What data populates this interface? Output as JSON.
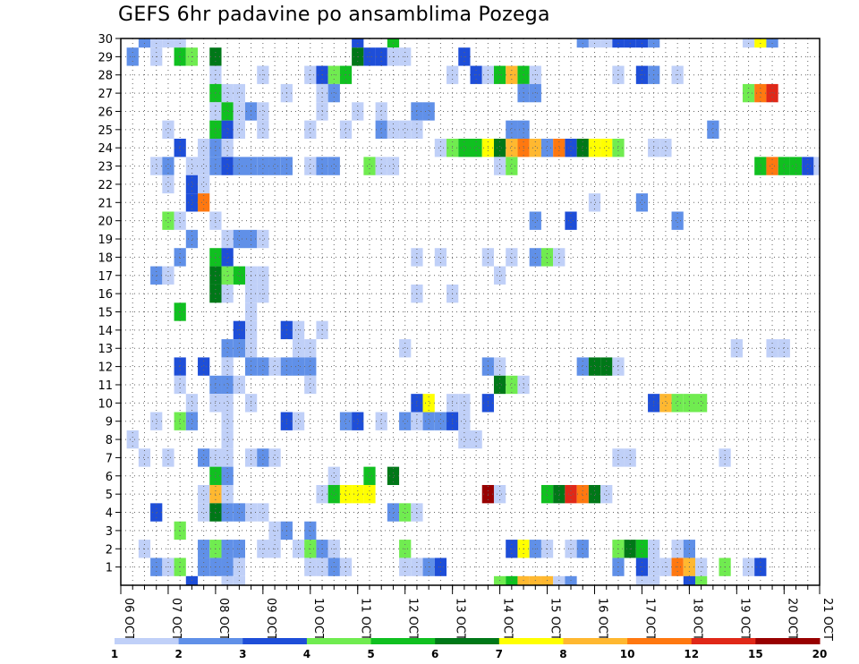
{
  "chart_data": {
    "type": "heatmap",
    "title": "GEFS 6hr padavine po ansamblima Pozega",
    "xlabel": "",
    "ylabel": "",
    "x_range": [
      0,
      59
    ],
    "y_range": [
      0,
      30
    ],
    "x_ticks": [
      {
        "t": 0,
        "label": "06 OCT"
      },
      {
        "t": 4,
        "label": "07 OCT"
      },
      {
        "t": 8,
        "label": "08 OCT"
      },
      {
        "t": 12,
        "label": "09 OCT"
      },
      {
        "t": 16,
        "label": "10 OCT"
      },
      {
        "t": 20,
        "label": "11 OCT"
      },
      {
        "t": 24,
        "label": "12 OCT"
      },
      {
        "t": 28,
        "label": "13 OCT"
      },
      {
        "t": 32,
        "label": "14 OCT"
      },
      {
        "t": 36,
        "label": "15 OCT"
      },
      {
        "t": 40,
        "label": "16 OCT"
      },
      {
        "t": 44,
        "label": "17 OCT"
      },
      {
        "t": 48,
        "label": "18 OCT"
      },
      {
        "t": 52,
        "label": "19 OCT"
      },
      {
        "t": 56,
        "label": "20 OCT"
      },
      {
        "t": 59,
        "label": "21 OCT"
      }
    ],
    "y_ticks": [
      "1",
      "2",
      "3",
      "4",
      "5",
      "6",
      "7",
      "8",
      "9",
      "10",
      "11",
      "12",
      "13",
      "14",
      "15",
      "16",
      "17",
      "18",
      "19",
      "20",
      "21",
      "22",
      "23",
      "24",
      "25",
      "26",
      "27",
      "28",
      "29",
      "30"
    ],
    "colorbar": {
      "colors": [
        "#c0d0f8",
        "#6090e8",
        "#1e4ed8",
        "#70ec50",
        "#10c020",
        "#007818",
        "#ffff00",
        "#ffb830",
        "#ff7810",
        "#e02818",
        "#980000"
      ],
      "labels": [
        "1",
        "2",
        "3",
        "4",
        "5",
        "6",
        "7",
        "8",
        "10",
        "12",
        "15",
        "20"
      ]
    },
    "cells": [
      [
        2,
        30,
        2
      ],
      [
        3,
        30,
        1
      ],
      [
        4,
        30,
        1
      ],
      [
        5,
        30,
        1
      ],
      [
        20,
        30,
        3
      ],
      [
        23,
        30,
        5
      ],
      [
        39,
        30,
        2
      ],
      [
        40,
        30,
        1
      ],
      [
        41,
        30,
        1
      ],
      [
        42,
        30,
        3
      ],
      [
        43,
        30,
        3
      ],
      [
        44,
        30,
        3
      ],
      [
        45,
        30,
        2
      ],
      [
        53,
        30,
        1
      ],
      [
        54,
        30,
        7
      ],
      [
        55,
        30,
        2
      ],
      [
        1,
        29,
        2
      ],
      [
        3,
        29,
        1
      ],
      [
        5,
        29,
        5
      ],
      [
        6,
        29,
        4
      ],
      [
        8,
        29,
        6
      ],
      [
        20,
        29,
        6
      ],
      [
        21,
        29,
        3
      ],
      [
        22,
        29,
        3
      ],
      [
        23,
        29,
        1
      ],
      [
        24,
        29,
        1
      ],
      [
        29,
        29,
        3
      ],
      [
        8,
        28,
        1
      ],
      [
        12,
        28,
        1
      ],
      [
        16,
        28,
        1
      ],
      [
        17,
        28,
        3
      ],
      [
        18,
        28,
        4
      ],
      [
        19,
        28,
        5
      ],
      [
        28,
        28,
        1
      ],
      [
        30,
        28,
        3
      ],
      [
        31,
        28,
        1
      ],
      [
        32,
        28,
        5
      ],
      [
        33,
        28,
        8
      ],
      [
        34,
        28,
        5
      ],
      [
        35,
        28,
        1
      ],
      [
        42,
        28,
        1
      ],
      [
        44,
        28,
        3
      ],
      [
        45,
        28,
        2
      ],
      [
        47,
        28,
        1
      ],
      [
        8,
        27,
        5
      ],
      [
        9,
        27,
        1
      ],
      [
        10,
        27,
        1
      ],
      [
        14,
        27,
        1
      ],
      [
        17,
        27,
        1
      ],
      [
        18,
        27,
        2
      ],
      [
        34,
        27,
        2
      ],
      [
        35,
        27,
        2
      ],
      [
        53,
        27,
        4
      ],
      [
        54,
        27,
        9
      ],
      [
        55,
        27,
        10
      ],
      [
        8,
        26,
        1
      ],
      [
        9,
        26,
        5
      ],
      [
        10,
        26,
        1
      ],
      [
        11,
        26,
        2
      ],
      [
        12,
        26,
        1
      ],
      [
        17,
        26,
        1
      ],
      [
        20,
        26,
        1
      ],
      [
        22,
        26,
        1
      ],
      [
        25,
        26,
        2
      ],
      [
        26,
        26,
        2
      ],
      [
        4,
        25,
        1
      ],
      [
        8,
        25,
        5
      ],
      [
        9,
        25,
        3
      ],
      [
        10,
        25,
        1
      ],
      [
        12,
        25,
        1
      ],
      [
        16,
        25,
        1
      ],
      [
        19,
        25,
        1
      ],
      [
        22,
        25,
        2
      ],
      [
        23,
        25,
        1
      ],
      [
        24,
        25,
        1
      ],
      [
        25,
        25,
        1
      ],
      [
        33,
        25,
        2
      ],
      [
        34,
        25,
        2
      ],
      [
        50,
        25,
        2
      ],
      [
        5,
        24,
        3
      ],
      [
        7,
        24,
        1
      ],
      [
        8,
        24,
        2
      ],
      [
        9,
        24,
        1
      ],
      [
        27,
        24,
        1
      ],
      [
        28,
        24,
        4
      ],
      [
        29,
        24,
        5
      ],
      [
        30,
        24,
        5
      ],
      [
        31,
        24,
        7
      ],
      [
        32,
        24,
        6
      ],
      [
        33,
        24,
        8
      ],
      [
        34,
        24,
        9
      ],
      [
        35,
        24,
        8
      ],
      [
        36,
        24,
        2
      ],
      [
        37,
        24,
        9
      ],
      [
        38,
        24,
        3
      ],
      [
        39,
        24,
        6
      ],
      [
        40,
        24,
        7
      ],
      [
        41,
        24,
        7
      ],
      [
        42,
        24,
        4
      ],
      [
        45,
        24,
        1
      ],
      [
        46,
        24,
        1
      ],
      [
        3,
        23,
        1
      ],
      [
        4,
        23,
        2
      ],
      [
        6,
        23,
        1
      ],
      [
        7,
        23,
        1
      ],
      [
        8,
        23,
        2
      ],
      [
        9,
        23,
        3
      ],
      [
        10,
        23,
        2
      ],
      [
        11,
        23,
        2
      ],
      [
        12,
        23,
        2
      ],
      [
        13,
        23,
        2
      ],
      [
        14,
        23,
        2
      ],
      [
        16,
        23,
        1
      ],
      [
        17,
        23,
        2
      ],
      [
        18,
        23,
        2
      ],
      [
        21,
        23,
        4
      ],
      [
        22,
        23,
        1
      ],
      [
        23,
        23,
        1
      ],
      [
        32,
        23,
        1
      ],
      [
        33,
        23,
        4
      ],
      [
        54,
        23,
        5
      ],
      [
        55,
        23,
        9
      ],
      [
        56,
        23,
        5
      ],
      [
        57,
        23,
        5
      ],
      [
        58,
        23,
        3
      ],
      [
        59,
        23,
        1
      ],
      [
        4,
        22,
        1
      ],
      [
        6,
        22,
        3
      ],
      [
        7,
        22,
        1
      ],
      [
        6,
        21,
        3
      ],
      [
        7,
        21,
        9
      ],
      [
        40,
        21,
        1
      ],
      [
        44,
        21,
        2
      ],
      [
        4,
        20,
        4
      ],
      [
        5,
        20,
        1
      ],
      [
        8,
        20,
        1
      ],
      [
        35,
        20,
        2
      ],
      [
        38,
        20,
        3
      ],
      [
        47,
        20,
        2
      ],
      [
        6,
        19,
        2
      ],
      [
        9,
        19,
        1
      ],
      [
        10,
        19,
        2
      ],
      [
        11,
        19,
        2
      ],
      [
        12,
        19,
        1
      ],
      [
        5,
        18,
        2
      ],
      [
        8,
        18,
        5
      ],
      [
        9,
        18,
        3
      ],
      [
        25,
        18,
        1
      ],
      [
        27,
        18,
        1
      ],
      [
        31,
        18,
        1
      ],
      [
        33,
        18,
        1
      ],
      [
        35,
        18,
        2
      ],
      [
        36,
        18,
        4
      ],
      [
        37,
        18,
        1
      ],
      [
        3,
        17,
        2
      ],
      [
        4,
        17,
        1
      ],
      [
        8,
        17,
        6
      ],
      [
        9,
        17,
        4
      ],
      [
        10,
        17,
        5
      ],
      [
        11,
        17,
        1
      ],
      [
        12,
        17,
        1
      ],
      [
        32,
        17,
        1
      ],
      [
        8,
        16,
        6
      ],
      [
        9,
        16,
        1
      ],
      [
        11,
        16,
        1
      ],
      [
        12,
        16,
        1
      ],
      [
        25,
        16,
        1
      ],
      [
        28,
        16,
        1
      ],
      [
        5,
        15,
        5
      ],
      [
        11,
        15,
        1
      ],
      [
        10,
        14,
        3
      ],
      [
        11,
        14,
        1
      ],
      [
        14,
        14,
        3
      ],
      [
        15,
        14,
        1
      ],
      [
        17,
        14,
        1
      ],
      [
        9,
        13,
        2
      ],
      [
        10,
        13,
        2
      ],
      [
        11,
        13,
        1
      ],
      [
        15,
        13,
        1
      ],
      [
        16,
        13,
        1
      ],
      [
        24,
        13,
        1
      ],
      [
        52,
        13,
        1
      ],
      [
        55,
        13,
        1
      ],
      [
        56,
        13,
        1
      ],
      [
        5,
        12,
        3
      ],
      [
        7,
        12,
        3
      ],
      [
        9,
        12,
        1
      ],
      [
        11,
        12,
        2
      ],
      [
        12,
        12,
        2
      ],
      [
        13,
        12,
        1
      ],
      [
        14,
        12,
        2
      ],
      [
        15,
        12,
        2
      ],
      [
        16,
        12,
        2
      ],
      [
        31,
        12,
        2
      ],
      [
        32,
        12,
        1
      ],
      [
        39,
        12,
        2
      ],
      [
        40,
        12,
        6
      ],
      [
        41,
        12,
        6
      ],
      [
        42,
        12,
        1
      ],
      [
        5,
        11,
        1
      ],
      [
        8,
        11,
        2
      ],
      [
        9,
        11,
        2
      ],
      [
        10,
        11,
        1
      ],
      [
        16,
        11,
        1
      ],
      [
        32,
        11,
        6
      ],
      [
        33,
        11,
        4
      ],
      [
        34,
        11,
        1
      ],
      [
        6,
        10,
        1
      ],
      [
        8,
        10,
        1
      ],
      [
        9,
        10,
        1
      ],
      [
        11,
        10,
        1
      ],
      [
        25,
        10,
        3
      ],
      [
        26,
        10,
        7
      ],
      [
        28,
        10,
        1
      ],
      [
        29,
        10,
        1
      ],
      [
        31,
        10,
        3
      ],
      [
        45,
        10,
        3
      ],
      [
        46,
        10,
        8
      ],
      [
        47,
        10,
        4
      ],
      [
        48,
        10,
        4
      ],
      [
        49,
        10,
        4
      ],
      [
        3,
        9,
        1
      ],
      [
        5,
        9,
        4
      ],
      [
        6,
        9,
        2
      ],
      [
        9,
        9,
        1
      ],
      [
        14,
        9,
        3
      ],
      [
        15,
        9,
        1
      ],
      [
        19,
        9,
        2
      ],
      [
        20,
        9,
        3
      ],
      [
        22,
        9,
        1
      ],
      [
        24,
        9,
        2
      ],
      [
        25,
        9,
        1
      ],
      [
        26,
        9,
        2
      ],
      [
        27,
        9,
        2
      ],
      [
        28,
        9,
        3
      ],
      [
        29,
        9,
        1
      ],
      [
        1,
        8,
        1
      ],
      [
        9,
        8,
        1
      ],
      [
        29,
        8,
        1
      ],
      [
        30,
        8,
        1
      ],
      [
        2,
        7,
        1
      ],
      [
        4,
        7,
        1
      ],
      [
        7,
        7,
        2
      ],
      [
        8,
        7,
        1
      ],
      [
        9,
        7,
        1
      ],
      [
        11,
        7,
        1
      ],
      [
        12,
        7,
        2
      ],
      [
        13,
        7,
        1
      ],
      [
        42,
        7,
        1
      ],
      [
        43,
        7,
        1
      ],
      [
        51,
        7,
        1
      ],
      [
        8,
        6,
        5
      ],
      [
        9,
        6,
        2
      ],
      [
        18,
        6,
        1
      ],
      [
        21,
        6,
        5
      ],
      [
        23,
        6,
        6
      ],
      [
        7,
        5,
        1
      ],
      [
        8,
        5,
        8
      ],
      [
        9,
        5,
        1
      ],
      [
        17,
        5,
        1
      ],
      [
        18,
        5,
        5
      ],
      [
        19,
        5,
        7
      ],
      [
        20,
        5,
        7
      ],
      [
        21,
        5,
        7
      ],
      [
        31,
        5,
        11
      ],
      [
        32,
        5,
        1
      ],
      [
        36,
        5,
        5
      ],
      [
        37,
        5,
        6
      ],
      [
        38,
        5,
        10
      ],
      [
        39,
        5,
        9
      ],
      [
        40,
        5,
        6
      ],
      [
        41,
        5,
        1
      ],
      [
        3,
        4,
        3
      ],
      [
        7,
        4,
        1
      ],
      [
        8,
        4,
        6
      ],
      [
        9,
        4,
        2
      ],
      [
        10,
        4,
        2
      ],
      [
        11,
        4,
        1
      ],
      [
        12,
        4,
        1
      ],
      [
        23,
        4,
        2
      ],
      [
        24,
        4,
        4
      ],
      [
        25,
        4,
        1
      ],
      [
        5,
        3,
        4
      ],
      [
        13,
        3,
        1
      ],
      [
        14,
        3,
        2
      ],
      [
        16,
        3,
        2
      ],
      [
        2,
        2,
        1
      ],
      [
        7,
        2,
        2
      ],
      [
        8,
        2,
        4
      ],
      [
        9,
        2,
        2
      ],
      [
        10,
        2,
        2
      ],
      [
        12,
        2,
        1
      ],
      [
        13,
        2,
        1
      ],
      [
        15,
        2,
        1
      ],
      [
        16,
        2,
        4
      ],
      [
        17,
        2,
        2
      ],
      [
        18,
        2,
        1
      ],
      [
        24,
        2,
        4
      ],
      [
        33,
        2,
        3
      ],
      [
        34,
        2,
        7
      ],
      [
        35,
        2,
        2
      ],
      [
        36,
        2,
        1
      ],
      [
        38,
        2,
        1
      ],
      [
        39,
        2,
        2
      ],
      [
        42,
        2,
        4
      ],
      [
        43,
        2,
        6
      ],
      [
        44,
        2,
        5
      ],
      [
        45,
        2,
        1
      ],
      [
        47,
        2,
        1
      ],
      [
        48,
        2,
        2
      ],
      [
        3,
        1,
        2
      ],
      [
        4,
        1,
        1
      ],
      [
        5,
        1,
        4
      ],
      [
        7,
        1,
        2
      ],
      [
        8,
        1,
        2
      ],
      [
        9,
        1,
        2
      ],
      [
        10,
        1,
        1
      ],
      [
        16,
        1,
        1
      ],
      [
        17,
        1,
        1
      ],
      [
        18,
        1,
        2
      ],
      [
        19,
        1,
        1
      ],
      [
        24,
        1,
        1
      ],
      [
        25,
        1,
        1
      ],
      [
        26,
        1,
        2
      ],
      [
        27,
        1,
        3
      ],
      [
        42,
        1,
        2
      ],
      [
        44,
        1,
        3
      ],
      [
        45,
        1,
        1
      ],
      [
        46,
        1,
        1
      ],
      [
        47,
        1,
        9
      ],
      [
        48,
        1,
        8
      ],
      [
        49,
        1,
        1
      ],
      [
        51,
        1,
        4
      ],
      [
        53,
        1,
        1
      ],
      [
        54,
        1,
        3
      ],
      [
        6,
        0,
        3
      ],
      [
        9,
        0,
        1
      ],
      [
        10,
        0,
        1
      ],
      [
        32,
        0,
        4
      ],
      [
        33,
        0,
        5
      ],
      [
        34,
        0,
        8
      ],
      [
        35,
        0,
        8
      ],
      [
        36,
        0,
        8
      ],
      [
        37,
        0,
        1
      ],
      [
        38,
        0,
        2
      ],
      [
        44,
        0,
        1
      ],
      [
        45,
        0,
        1
      ],
      [
        48,
        0,
        3
      ],
      [
        49,
        0,
        4
      ]
    ]
  }
}
